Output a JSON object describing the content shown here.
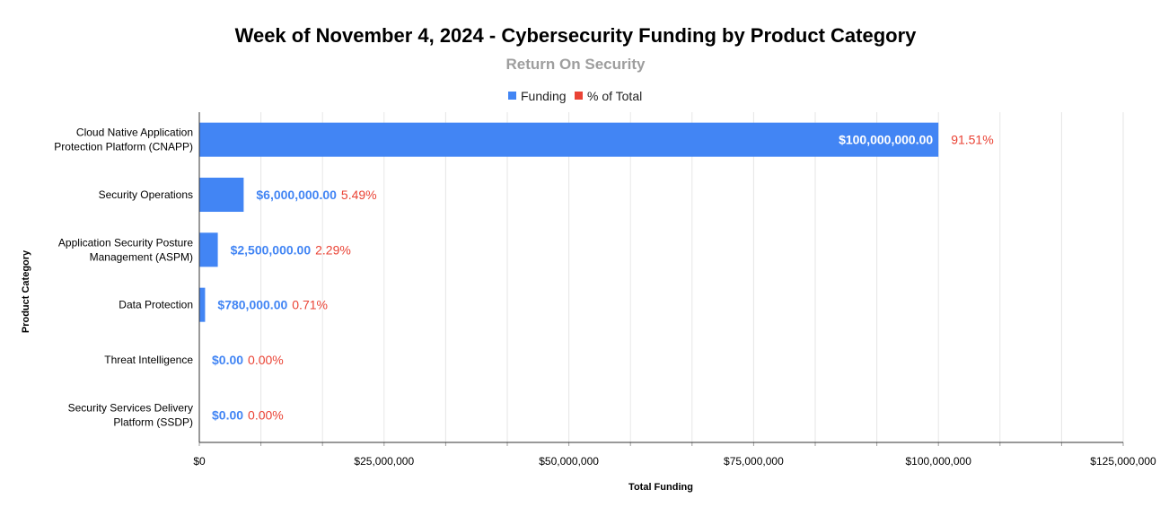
{
  "chart_data": {
    "type": "bar",
    "orientation": "horizontal",
    "title": "Week of November 4, 2024 - Cybersecurity Funding by Product Category",
    "subtitle": "Return On Security",
    "xlabel": "Total Funding",
    "ylabel": "Product Category",
    "xlim": [
      0,
      125000000
    ],
    "grid": true,
    "legend_position": "top-center",
    "x_ticks": [
      0,
      25000000,
      50000000,
      75000000,
      100000000,
      125000000
    ],
    "x_tick_labels": [
      "$0",
      "$25,000,000",
      "$50,000,000",
      "$75,000,000",
      "$100,000,000",
      "$125,000,000"
    ],
    "categories": [
      [
        "Cloud Native Application",
        "Protection Platform (CNAPP)"
      ],
      [
        "Security Operations"
      ],
      [
        "Application Security Posture",
        "Management (ASPM)"
      ],
      [
        "Data Protection"
      ],
      [
        "Threat Intelligence"
      ],
      [
        "Security Services Delivery",
        "Platform (SSDP)"
      ]
    ],
    "series": [
      {
        "name": "Funding",
        "color": "#4285f4",
        "values": [
          100000000,
          6000000,
          2500000,
          780000,
          0,
          0
        ],
        "labels": [
          "$100,000,000.00",
          "$6,000,000.00",
          "$2,500,000.00",
          "$780,000.00",
          "$0.00",
          "$0.00"
        ]
      },
      {
        "name": "% of Total",
        "color": "#ea4335",
        "values": [
          91.51,
          5.49,
          2.29,
          0.71,
          0.0,
          0.0
        ],
        "labels": [
          "91.51%",
          "5.49%",
          "2.29%",
          "0.71%",
          "0.00%",
          "0.00%"
        ]
      }
    ]
  }
}
